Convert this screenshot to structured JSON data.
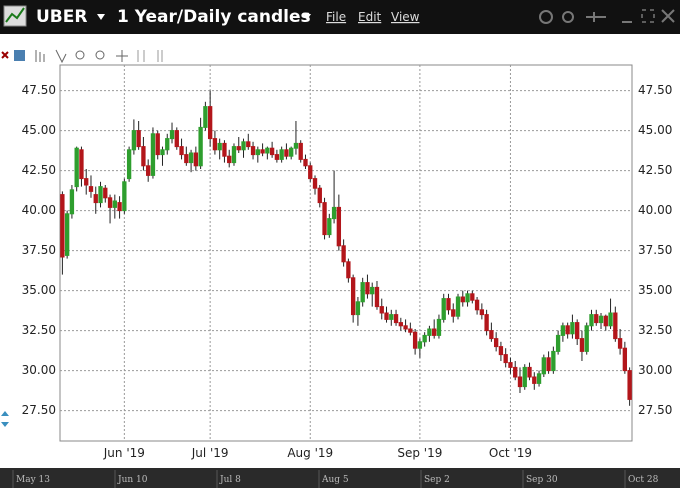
{
  "header": {
    "symbol": "UBER",
    "interval": "1 Year/Daily candles",
    "menu": [
      "File",
      "Edit",
      "View"
    ]
  },
  "chart_data": {
    "type": "candlestick",
    "candles": [
      [
        41.0,
        41.2,
        36.0,
        37.1
      ],
      [
        37.2,
        40.0,
        37.0,
        39.8
      ],
      [
        39.8,
        41.6,
        39.5,
        41.3
      ],
      [
        41.5,
        44.0,
        41.2,
        43.9
      ],
      [
        43.8,
        44.0,
        41.5,
        42.0
      ],
      [
        42.0,
        42.6,
        41.0,
        41.6
      ],
      [
        41.5,
        42.2,
        40.8,
        41.2
      ],
      [
        41.0,
        41.5,
        39.8,
        40.5
      ],
      [
        40.5,
        41.8,
        40.2,
        41.5
      ],
      [
        41.4,
        41.6,
        40.5,
        40.8
      ],
      [
        40.8,
        41.0,
        39.2,
        40.2
      ],
      [
        40.2,
        41.0,
        39.5,
        40.6
      ],
      [
        40.5,
        40.9,
        39.5,
        40.0
      ],
      [
        40.0,
        42.0,
        39.8,
        41.8
      ],
      [
        42.0,
        44.0,
        41.8,
        43.8
      ],
      [
        43.8,
        45.7,
        43.5,
        45.0
      ],
      [
        45.0,
        45.6,
        43.8,
        44.0
      ],
      [
        44.0,
        44.6,
        42.5,
        42.8
      ],
      [
        42.8,
        43.2,
        41.8,
        42.2
      ],
      [
        42.2,
        45.2,
        42.0,
        44.8
      ],
      [
        44.8,
        45.0,
        43.2,
        43.5
      ],
      [
        43.5,
        44.0,
        42.8,
        43.8
      ],
      [
        43.8,
        44.8,
        43.5,
        44.5
      ],
      [
        44.5,
        45.5,
        44.2,
        45.0
      ],
      [
        45.0,
        45.2,
        43.8,
        44.0
      ],
      [
        44.0,
        44.5,
        43.2,
        43.5
      ],
      [
        43.5,
        44.0,
        42.8,
        43.0
      ],
      [
        43.0,
        43.8,
        42.4,
        43.6
      ],
      [
        43.6,
        44.0,
        42.5,
        42.8
      ],
      [
        42.8,
        45.8,
        42.6,
        45.2
      ],
      [
        45.2,
        46.8,
        45.0,
        46.5
      ],
      [
        46.5,
        47.5,
        44.0,
        44.5
      ],
      [
        44.5,
        45.0,
        43.5,
        43.8
      ],
      [
        43.8,
        44.5,
        43.2,
        44.2
      ],
      [
        44.2,
        44.4,
        43.0,
        43.4
      ],
      [
        43.4,
        43.8,
        42.7,
        43.0
      ],
      [
        43.0,
        44.2,
        42.8,
        44.0
      ],
      [
        44.0,
        44.6,
        43.6,
        43.8
      ],
      [
        43.8,
        44.5,
        43.3,
        44.3
      ],
      [
        44.3,
        44.8,
        43.8,
        44.0
      ],
      [
        44.0,
        44.3,
        43.2,
        43.5
      ],
      [
        43.5,
        44.0,
        43.0,
        43.8
      ],
      [
        43.8,
        44.2,
        43.4,
        43.6
      ],
      [
        43.6,
        44.0,
        43.2,
        43.9
      ],
      [
        43.9,
        44.3,
        43.3,
        43.5
      ],
      [
        43.5,
        43.8,
        43.0,
        43.2
      ],
      [
        43.2,
        44.0,
        43.0,
        43.8
      ],
      [
        43.8,
        44.2,
        43.2,
        43.4
      ],
      [
        43.4,
        44.0,
        43.2,
        43.9
      ],
      [
        43.9,
        45.6,
        43.5,
        44.2
      ],
      [
        44.2,
        44.4,
        43.0,
        43.2
      ],
      [
        43.2,
        43.5,
        42.6,
        42.8
      ],
      [
        42.8,
        43.0,
        41.8,
        42.0
      ],
      [
        42.0,
        42.2,
        41.0,
        41.4
      ],
      [
        41.4,
        41.6,
        40.2,
        40.5
      ],
      [
        40.5,
        40.8,
        38.2,
        38.5
      ],
      [
        38.5,
        39.8,
        38.3,
        39.5
      ],
      [
        39.5,
        42.5,
        39.2,
        40.2
      ],
      [
        40.2,
        41.0,
        37.5,
        37.8
      ],
      [
        37.8,
        38.2,
        36.5,
        36.8
      ],
      [
        36.8,
        37.0,
        35.5,
        35.8
      ],
      [
        35.8,
        36.0,
        33.0,
        33.5
      ],
      [
        33.5,
        34.6,
        32.8,
        34.3
      ],
      [
        34.3,
        35.8,
        34.0,
        35.5
      ],
      [
        35.5,
        36.0,
        34.5,
        34.8
      ],
      [
        34.8,
        35.5,
        34.0,
        35.2
      ],
      [
        35.2,
        35.6,
        33.8,
        34.0
      ],
      [
        34.0,
        34.5,
        33.2,
        33.6
      ],
      [
        33.6,
        34.0,
        33.0,
        33.2
      ],
      [
        33.2,
        33.8,
        32.8,
        33.5
      ],
      [
        33.5,
        33.8,
        32.8,
        33.0
      ],
      [
        33.0,
        33.3,
        32.5,
        32.8
      ],
      [
        32.8,
        33.2,
        32.4,
        32.6
      ],
      [
        32.6,
        33.0,
        32.2,
        32.4
      ],
      [
        32.4,
        32.6,
        31.0,
        31.4
      ],
      [
        31.4,
        32.0,
        30.8,
        31.8
      ],
      [
        31.8,
        32.4,
        31.5,
        32.2
      ],
      [
        32.2,
        32.8,
        31.8,
        32.6
      ],
      [
        32.6,
        33.2,
        32.0,
        32.2
      ],
      [
        32.2,
        33.5,
        32.0,
        33.2
      ],
      [
        33.2,
        34.8,
        33.0,
        34.5
      ],
      [
        34.5,
        34.8,
        33.5,
        33.8
      ],
      [
        33.8,
        34.2,
        33.0,
        33.4
      ],
      [
        33.4,
        34.8,
        33.2,
        34.6
      ],
      [
        34.6,
        35.0,
        34.0,
        34.3
      ],
      [
        34.3,
        35.0,
        34.0,
        34.8
      ],
      [
        34.8,
        35.0,
        34.2,
        34.4
      ],
      [
        34.4,
        34.6,
        33.5,
        33.8
      ],
      [
        33.8,
        34.2,
        33.2,
        33.5
      ],
      [
        33.5,
        33.8,
        32.2,
        32.5
      ],
      [
        32.5,
        33.0,
        31.8,
        32.0
      ],
      [
        32.0,
        32.4,
        31.2,
        31.5
      ],
      [
        31.5,
        31.8,
        30.6,
        31.0
      ],
      [
        31.0,
        31.4,
        30.2,
        30.5
      ],
      [
        30.5,
        30.8,
        29.8,
        30.2
      ],
      [
        30.2,
        30.6,
        29.4,
        29.6
      ],
      [
        29.6,
        30.2,
        28.6,
        29.0
      ],
      [
        29.0,
        30.4,
        28.8,
        30.2
      ],
      [
        30.2,
        30.5,
        29.4,
        29.6
      ],
      [
        29.6,
        29.9,
        28.8,
        29.2
      ],
      [
        29.2,
        30.0,
        29.0,
        29.8
      ],
      [
        29.8,
        31.0,
        29.6,
        30.8
      ],
      [
        30.8,
        31.2,
        29.8,
        30.0
      ],
      [
        30.0,
        31.5,
        29.8,
        31.2
      ],
      [
        31.2,
        32.5,
        31.0,
        32.2
      ],
      [
        32.2,
        33.0,
        31.8,
        32.8
      ],
      [
        32.8,
        33.0,
        32.0,
        32.3
      ],
      [
        32.3,
        33.5,
        32.0,
        33.0
      ],
      [
        33.0,
        33.2,
        31.6,
        32.0
      ],
      [
        32.0,
        32.5,
        30.6,
        31.2
      ],
      [
        31.2,
        33.0,
        31.0,
        32.8
      ],
      [
        32.8,
        33.8,
        32.5,
        33.5
      ],
      [
        33.5,
        33.8,
        32.8,
        33.0
      ],
      [
        33.0,
        33.6,
        32.6,
        33.4
      ],
      [
        33.4,
        33.5,
        32.5,
        32.8
      ],
      [
        32.8,
        34.5,
        32.6,
        33.6
      ],
      [
        33.6,
        34.0,
        31.8,
        32.0
      ],
      [
        32.0,
        32.6,
        31.0,
        31.4
      ],
      [
        31.4,
        31.8,
        29.8,
        30.0
      ],
      [
        30.0,
        30.2,
        27.8,
        28.2
      ]
    ],
    "up_color": "#2e9e2e",
    "down_color": "#b3161b",
    "xlim": [
      0,
      120
    ],
    "xticks": [
      {
        "value": 13,
        "label": "Jun '19"
      },
      {
        "value": 31,
        "label": "Jul '19"
      },
      {
        "value": 52,
        "label": "Aug '19"
      },
      {
        "value": 75,
        "label": "Sep '19"
      },
      {
        "value": 94,
        "label": "Oct '19"
      }
    ],
    "ylim": [
      25.6,
      49.1
    ],
    "yticks": [
      {
        "value": 27.5,
        "label": "27.50"
      },
      {
        "value": 30,
        "label": "30.00"
      },
      {
        "value": 32.5,
        "label": "32.50"
      },
      {
        "value": 35,
        "label": "35.00"
      },
      {
        "value": 37.5,
        "label": "37.50"
      },
      {
        "value": 40,
        "label": "40.00"
      },
      {
        "value": 42.5,
        "label": "42.50"
      },
      {
        "value": 45,
        "label": "45.00"
      },
      {
        "value": 47.5,
        "label": "47.50"
      }
    ],
    "grid": true
  },
  "navigator": {
    "labels": [
      "May 13",
      "Jun 10",
      "Jul 8",
      "Aug 5",
      "Sep 2",
      "Sep 30",
      "Oct 28"
    ]
  }
}
